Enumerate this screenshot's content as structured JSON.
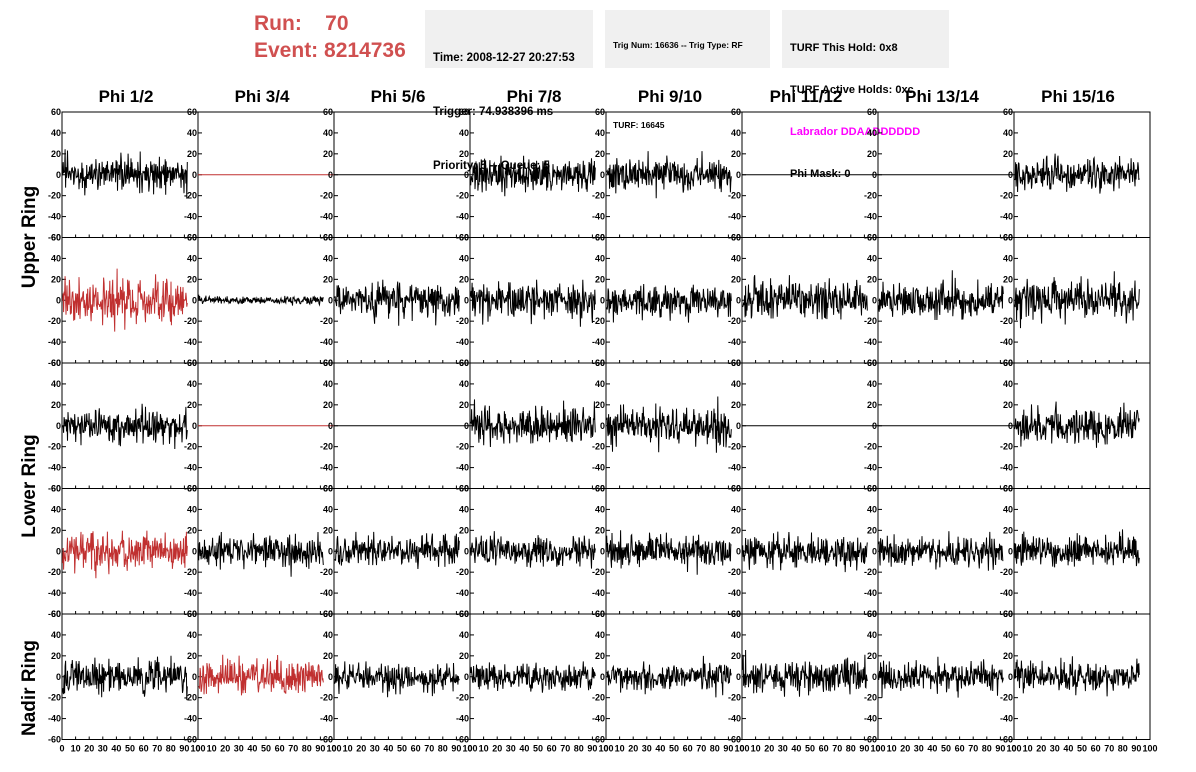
{
  "header": {
    "run_label": "Run:",
    "run_value": "70",
    "event_label": "Event:",
    "event_value": "8214736",
    "accent_color": "#d05050"
  },
  "info": {
    "time": "Time: 2008-12-27 20:27:53",
    "trigger": "Trigger: 74.938396 ms",
    "priority": "Priority: 5 -- Queue: 5",
    "trig_num": "Trig Num: 16636 -- Trig Type: RF",
    "turf": "TURF: 16645",
    "turf_this_hold": "TURF This Hold: 0x8",
    "turf_active_holds": "TURF Active Holds: 0xc",
    "labrador": "Labrador DDAADDDDDD",
    "labrador_color": "#ff00ff",
    "phi_mask": "Phi Mask: 0"
  },
  "columns": [
    "Phi 1/2",
    "Phi 3/4",
    "Phi 5/6",
    "Phi 7/8",
    "Phi 9/10",
    "Phi 11/12",
    "Phi 13/14",
    "Phi 15/16"
  ],
  "ring_labels": [
    "Upper Ring",
    "Lower Ring",
    "Nadir Ring"
  ],
  "chart_data": {
    "type": "line",
    "description_units": "waveform amplitude vs time bin",
    "xlim": [
      0,
      100
    ],
    "ylim": [
      -60,
      60
    ],
    "x_tick_labels": [
      "0",
      "10",
      "20",
      "30",
      "40",
      "50",
      "60",
      "70",
      "80",
      "90",
      "100"
    ],
    "y_tick_labels": [
      "60",
      "40",
      "20",
      "0",
      "-20",
      "-40",
      "-60"
    ],
    "highlight_color": "#c03030",
    "panels": [
      {
        "row": 0,
        "col": 0,
        "mode": "noise",
        "amp": 14,
        "color": "black",
        "seed": 11
      },
      {
        "row": 0,
        "col": 1,
        "mode": "flat",
        "color": "red"
      },
      {
        "row": 0,
        "col": 2,
        "mode": "flat",
        "color": "black"
      },
      {
        "row": 0,
        "col": 3,
        "mode": "noise",
        "amp": 14,
        "color": "black",
        "seed": 13
      },
      {
        "row": 0,
        "col": 4,
        "mode": "noise",
        "amp": 13,
        "color": "black",
        "seed": 14
      },
      {
        "row": 0,
        "col": 5,
        "mode": "flat",
        "color": "black"
      },
      {
        "row": 0,
        "col": 6,
        "mode": "flat",
        "color": "black"
      },
      {
        "row": 0,
        "col": 7,
        "mode": "noise",
        "amp": 14,
        "color": "black",
        "seed": 17
      },
      {
        "row": 1,
        "col": 0,
        "mode": "noise",
        "amp": 18,
        "color": "red",
        "seed": 21
      },
      {
        "row": 1,
        "col": 1,
        "mode": "noise",
        "amp": 3,
        "color": "black",
        "seed": 22
      },
      {
        "row": 1,
        "col": 2,
        "mode": "noise",
        "amp": 14,
        "color": "black",
        "seed": 23
      },
      {
        "row": 1,
        "col": 3,
        "mode": "noise",
        "amp": 14,
        "color": "black",
        "seed": 24
      },
      {
        "row": 1,
        "col": 4,
        "mode": "noise",
        "amp": 13,
        "color": "black",
        "seed": 25
      },
      {
        "row": 1,
        "col": 5,
        "mode": "noise",
        "amp": 15,
        "color": "black",
        "seed": 26
      },
      {
        "row": 1,
        "col": 6,
        "mode": "noise",
        "amp": 14,
        "color": "black",
        "seed": 27
      },
      {
        "row": 1,
        "col": 7,
        "mode": "noise",
        "amp": 16,
        "color": "black",
        "seed": 28
      },
      {
        "row": 2,
        "col": 0,
        "mode": "noise",
        "amp": 13,
        "color": "black",
        "seed": 31
      },
      {
        "row": 2,
        "col": 1,
        "mode": "flat",
        "color": "red"
      },
      {
        "row": 2,
        "col": 2,
        "mode": "flat",
        "color": "black"
      },
      {
        "row": 2,
        "col": 3,
        "mode": "noise",
        "amp": 14,
        "color": "black",
        "seed": 34
      },
      {
        "row": 2,
        "col": 4,
        "mode": "noise",
        "amp": 15,
        "color": "black",
        "seed": 35
      },
      {
        "row": 2,
        "col": 5,
        "mode": "flat",
        "color": "black"
      },
      {
        "row": 2,
        "col": 6,
        "mode": "flat",
        "color": "black"
      },
      {
        "row": 2,
        "col": 7,
        "mode": "noise",
        "amp": 14,
        "color": "black",
        "seed": 38
      },
      {
        "row": 3,
        "col": 0,
        "mode": "noise",
        "amp": 14,
        "color": "red",
        "seed": 41
      },
      {
        "row": 3,
        "col": 1,
        "mode": "noise",
        "amp": 12,
        "color": "black",
        "seed": 42
      },
      {
        "row": 3,
        "col": 2,
        "mode": "noise",
        "amp": 12,
        "color": "black",
        "seed": 43
      },
      {
        "row": 3,
        "col": 3,
        "mode": "noise",
        "amp": 12,
        "color": "black",
        "seed": 44
      },
      {
        "row": 3,
        "col": 4,
        "mode": "noise",
        "amp": 12,
        "color": "black",
        "seed": 45
      },
      {
        "row": 3,
        "col": 5,
        "mode": "noise",
        "amp": 12,
        "color": "black",
        "seed": 46
      },
      {
        "row": 3,
        "col": 6,
        "mode": "noise",
        "amp": 12,
        "color": "black",
        "seed": 47
      },
      {
        "row": 3,
        "col": 7,
        "mode": "noise",
        "amp": 12,
        "color": "black",
        "seed": 48
      },
      {
        "row": 4,
        "col": 0,
        "mode": "noise",
        "amp": 14,
        "color": "black",
        "seed": 51
      },
      {
        "row": 4,
        "col": 1,
        "mode": "noise",
        "amp": 13,
        "color": "red",
        "seed": 52
      },
      {
        "row": 4,
        "col": 2,
        "mode": "noise",
        "amp": 11,
        "color": "black",
        "seed": 53
      },
      {
        "row": 4,
        "col": 3,
        "mode": "noise",
        "amp": 11,
        "color": "black",
        "seed": 54
      },
      {
        "row": 4,
        "col": 4,
        "mode": "noise",
        "amp": 11,
        "color": "black",
        "seed": 55
      },
      {
        "row": 4,
        "col": 5,
        "mode": "noise",
        "amp": 13,
        "color": "black",
        "seed": 56
      },
      {
        "row": 4,
        "col": 6,
        "mode": "noise",
        "amp": 12,
        "color": "black",
        "seed": 57
      },
      {
        "row": 4,
        "col": 7,
        "mode": "noise",
        "amp": 11,
        "color": "black",
        "seed": 58
      }
    ]
  }
}
